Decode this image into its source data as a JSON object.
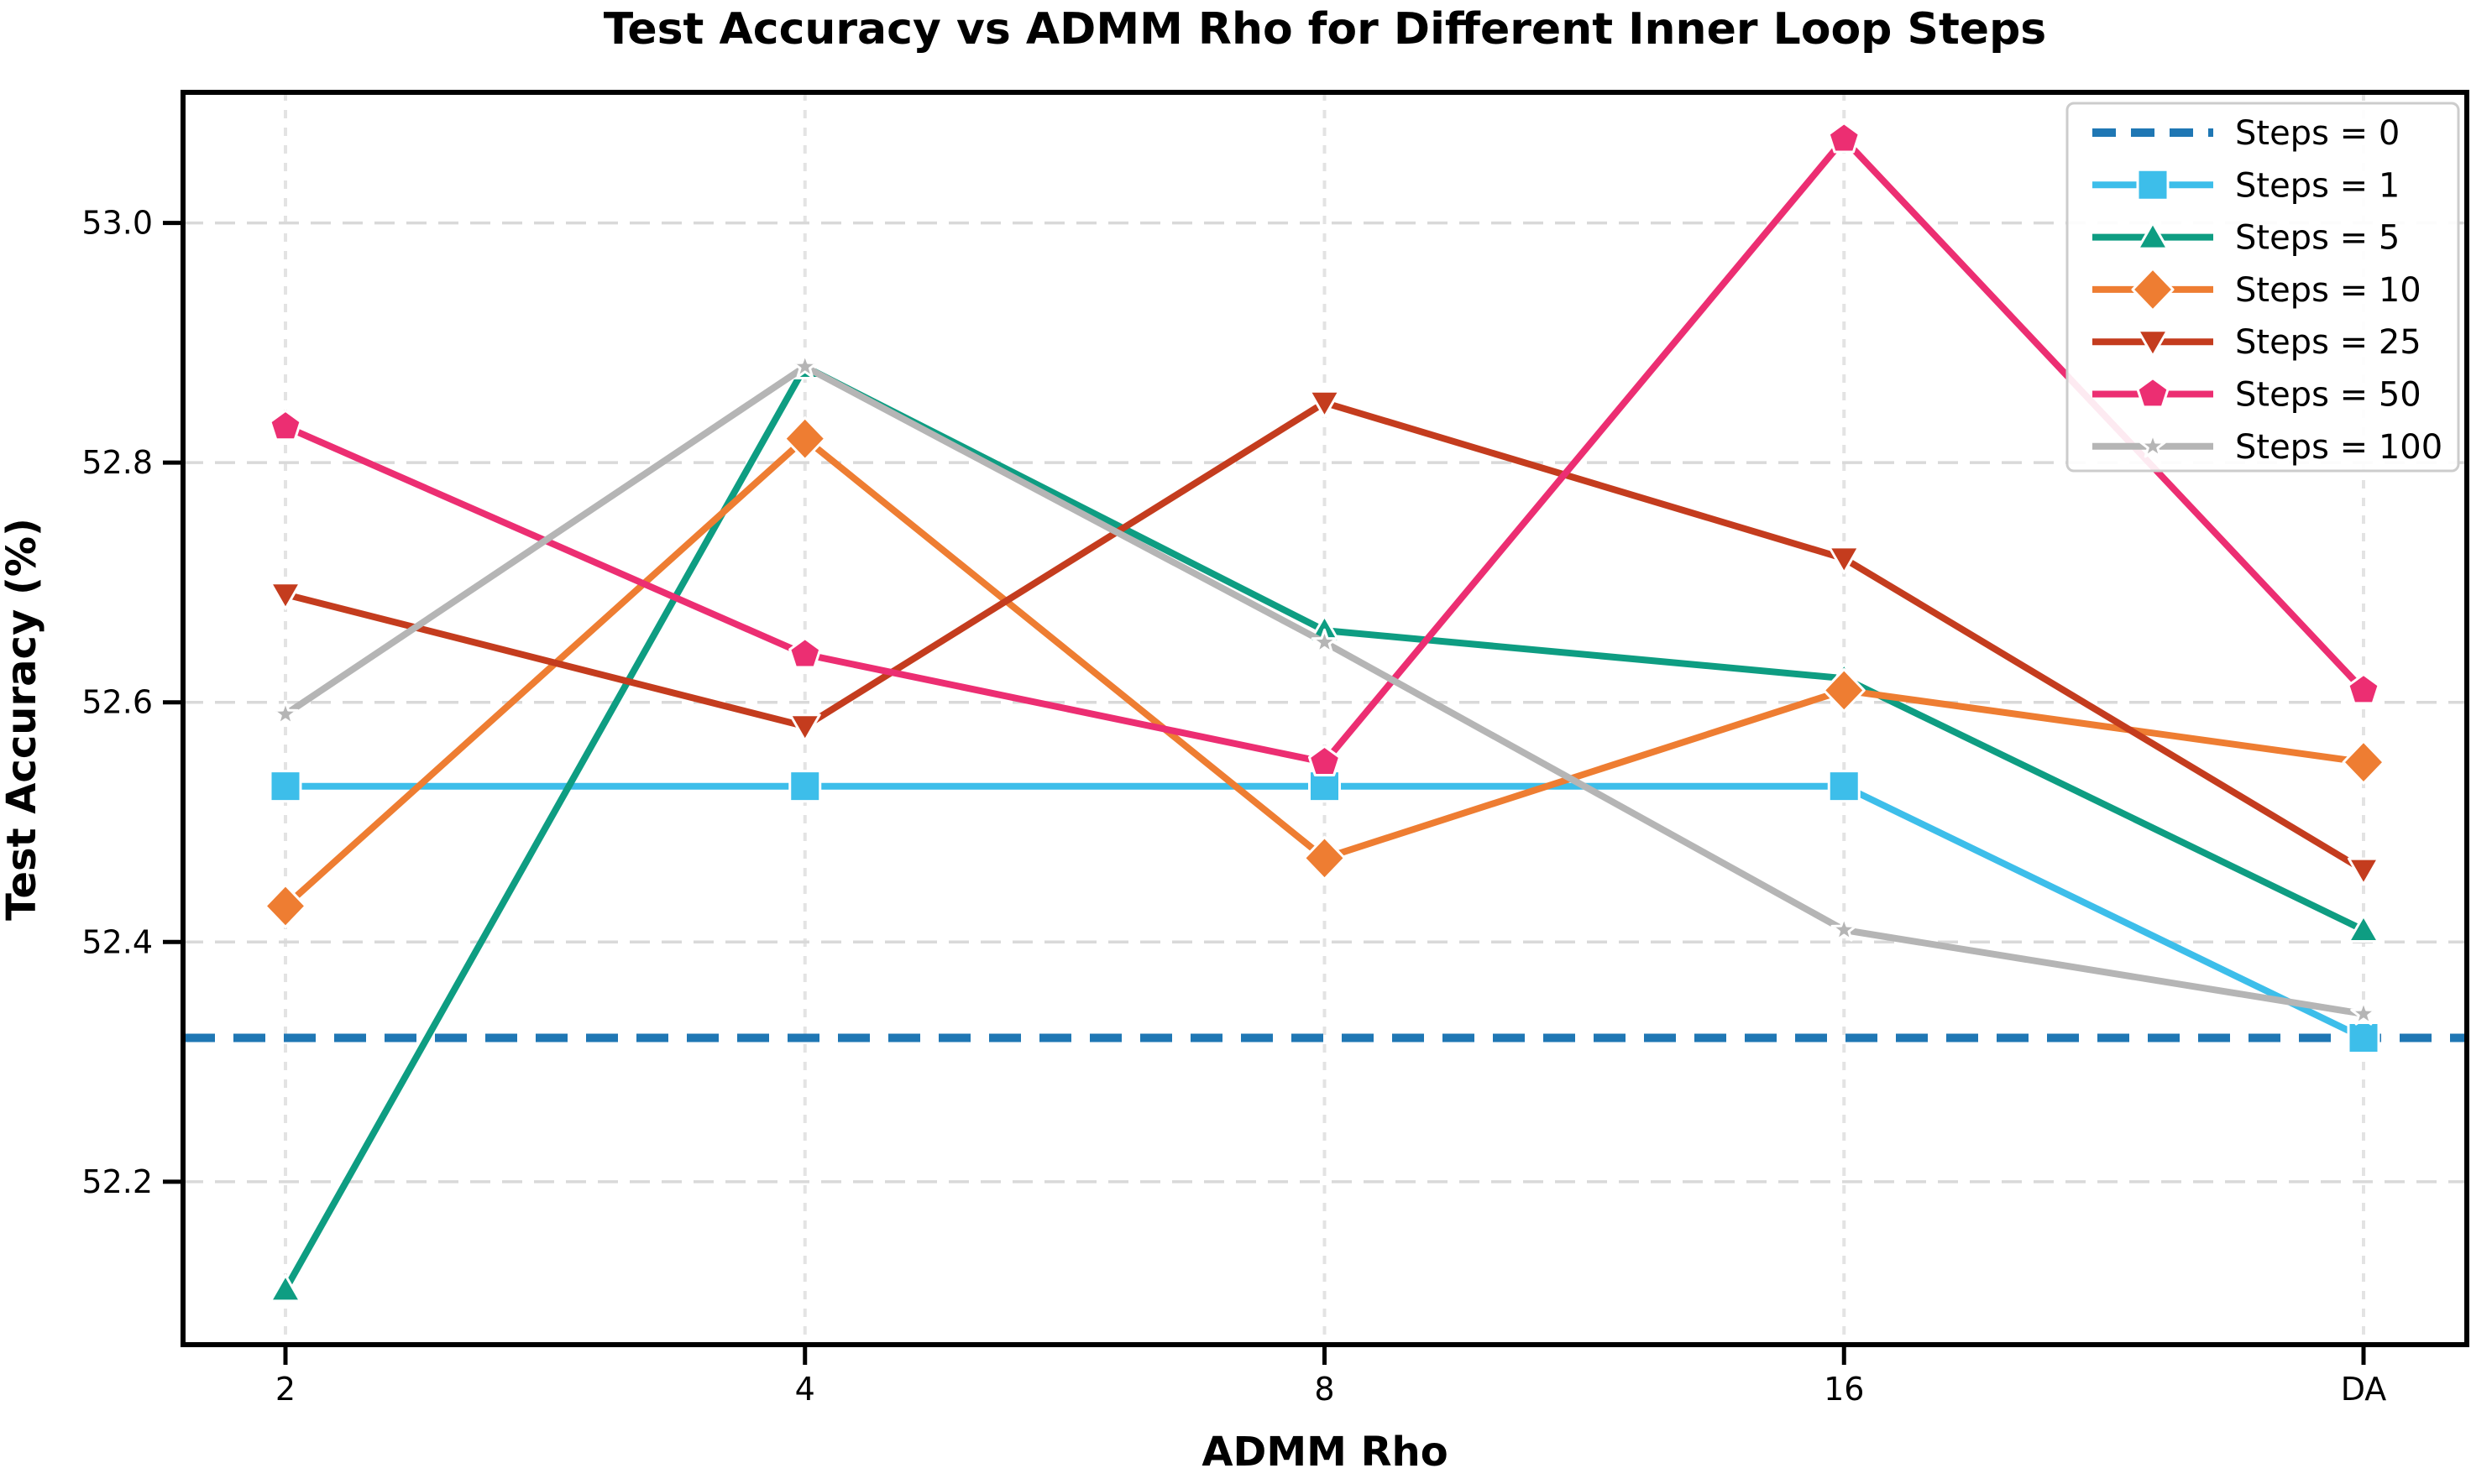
{
  "chart_data": {
    "type": "line",
    "title": "Test Accuracy vs ADMM Rho for Different Inner Loop Steps",
    "xlabel": "ADMM Rho",
    "ylabel": "Test Accuracy (%)",
    "categories": [
      "2",
      "4",
      "8",
      "16",
      "DA"
    ],
    "y_ticks": [
      52.2,
      52.4,
      52.6,
      52.8,
      53.0
    ],
    "ylim": [
      52.064,
      53.109
    ],
    "grid": true,
    "legend_position": "upper right",
    "background_color": "#ffffff",
    "grid_color": "#d9d9d9",
    "legend_border_color": "#cccccc",
    "series": [
      {
        "name": "Steps = 0",
        "color": "#1f77b4",
        "linestyle": "dashed",
        "marker": "none",
        "values": [
          52.32,
          52.32,
          52.32,
          52.32,
          52.32
        ]
      },
      {
        "name": "Steps = 1",
        "color": "#3dbeea",
        "linestyle": "solid",
        "marker": "square",
        "values": [
          52.53,
          52.53,
          52.53,
          52.53,
          52.32
        ]
      },
      {
        "name": "Steps = 5",
        "color": "#0e9d82",
        "linestyle": "solid",
        "marker": "triangle-up",
        "values": [
          52.11,
          52.88,
          52.66,
          52.62,
          52.41
        ]
      },
      {
        "name": "Steps = 10",
        "color": "#ee7d32",
        "linestyle": "solid",
        "marker": "diamond",
        "values": [
          52.43,
          52.82,
          52.47,
          52.61,
          52.55
        ]
      },
      {
        "name": "Steps = 25",
        "color": "#c43c1e",
        "linestyle": "solid",
        "marker": "triangle-down",
        "values": [
          52.69,
          52.58,
          52.85,
          52.72,
          52.46
        ]
      },
      {
        "name": "Steps = 50",
        "color": "#ec2e72",
        "linestyle": "solid",
        "marker": "pentagon",
        "values": [
          52.83,
          52.64,
          52.55,
          53.07,
          52.61
        ]
      },
      {
        "name": "Steps = 100",
        "color": "#b5b5b5",
        "linestyle": "solid",
        "marker": "star",
        "values": [
          52.59,
          52.88,
          52.65,
          52.41,
          52.34
        ]
      }
    ]
  }
}
